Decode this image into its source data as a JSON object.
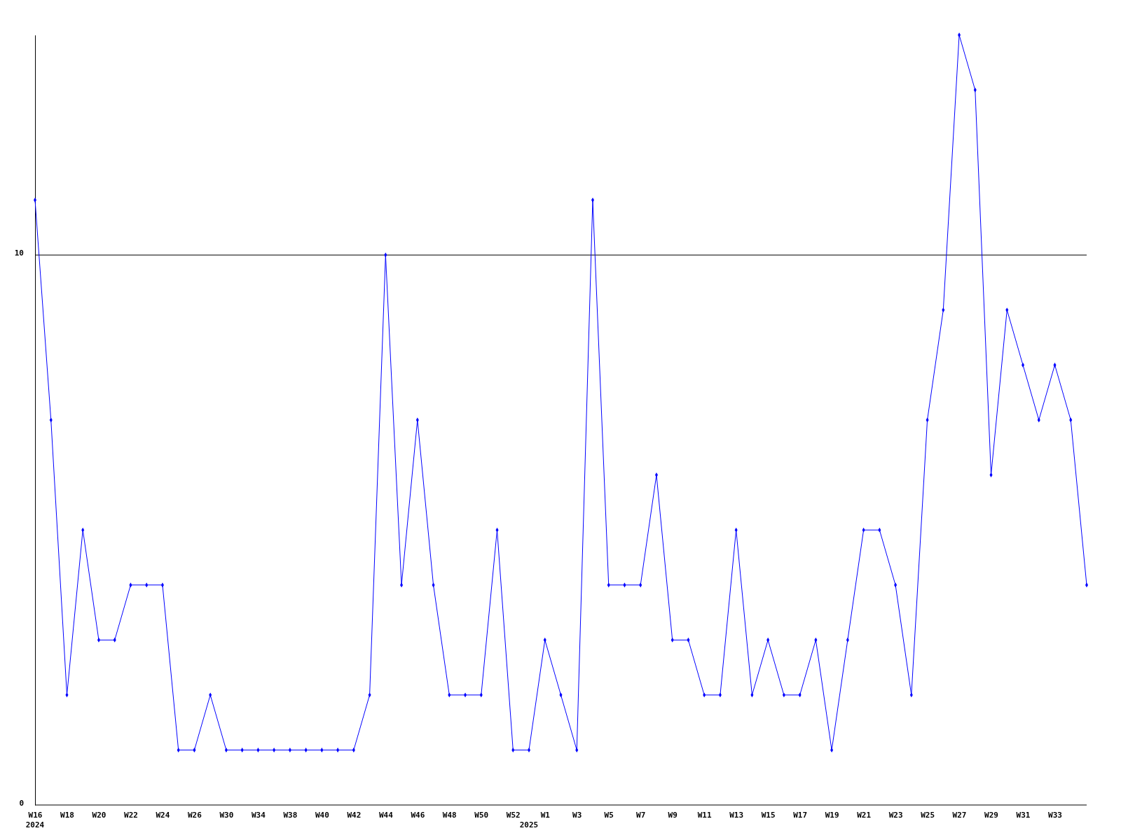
{
  "chart_data": {
    "type": "line",
    "categories": [
      "W16",
      null,
      "W18",
      null,
      "W20",
      null,
      "W22",
      null,
      "W24",
      null,
      "W26",
      null,
      "W30",
      null,
      "W34",
      null,
      "W38",
      null,
      "W40",
      null,
      "W42",
      null,
      "W44",
      null,
      "W46",
      null,
      "W48",
      null,
      "W50",
      null,
      "W52",
      null,
      "W1",
      null,
      "W3",
      null,
      "W5",
      null,
      "W7",
      null,
      "W9",
      null,
      "W11",
      null,
      "W13",
      null,
      "W15",
      null,
      "W17",
      null,
      "W19",
      null,
      "W21",
      null,
      "W23",
      null,
      "W25",
      null,
      "W27",
      null,
      "W29",
      null,
      "W31",
      null,
      "W33",
      null,
      null
    ],
    "series": [
      {
        "color": "#0000ff",
        "values": [
          11,
          7,
          2,
          5,
          3,
          3,
          4,
          4,
          4,
          1,
          1,
          2,
          1,
          1,
          1,
          1,
          1,
          1,
          1,
          1,
          1,
          2,
          10,
          4,
          7,
          4,
          2,
          2,
          2,
          5,
          1,
          1,
          3,
          2,
          1,
          11,
          4,
          4,
          4,
          6,
          3,
          3,
          2,
          2,
          5,
          2,
          3,
          2,
          2,
          3,
          1,
          3,
          5,
          5,
          4,
          2,
          7,
          9,
          14,
          13,
          6,
          9,
          8,
          7,
          8,
          7,
          4
        ]
      }
    ],
    "ylim": [
      0,
      14
    ],
    "yticks": [
      0,
      10
    ],
    "grid": "y",
    "marker": "diamond",
    "line_style": "solid",
    "annotations": [
      "2024",
      "2025"
    ]
  }
}
